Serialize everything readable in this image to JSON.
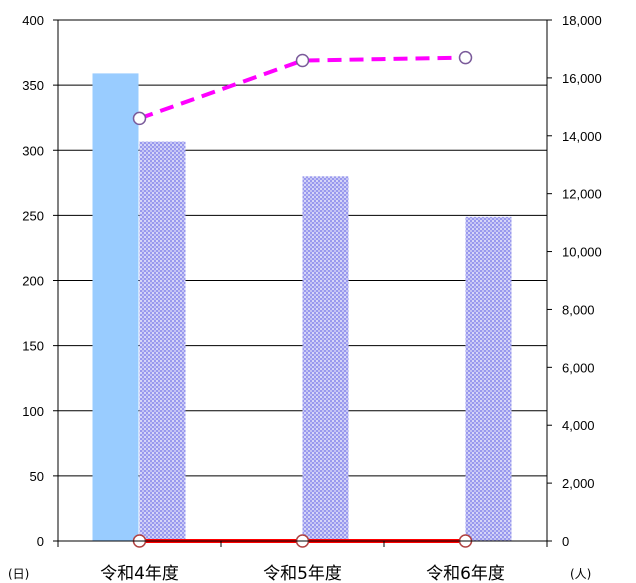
{
  "chart_data": {
    "type": "bar",
    "categories": [
      "令和4年度",
      "令和5年度",
      "令和6年度"
    ],
    "left_axis": {
      "unit": "(日)",
      "ylim": [
        0,
        400
      ],
      "ticks": [
        "0",
        "50",
        "100",
        "150",
        "200",
        "250",
        "300",
        "350",
        "400"
      ]
    },
    "right_axis": {
      "unit": "(人)",
      "ylim": [
        0,
        18000
      ],
      "ticks": [
        "0",
        "2,000",
        "4,000",
        "6,000",
        "8,000",
        "10,000",
        "12,000",
        "14,000",
        "16,000",
        "18,000"
      ]
    },
    "series": [
      {
        "kind": "bar",
        "axis": "left",
        "style": "solid",
        "color": "#99ccff",
        "values": [
          359,
          null,
          null
        ]
      },
      {
        "kind": "bar",
        "axis": "right",
        "style": "dotted",
        "color": "#9999ee",
        "values": [
          13800,
          12600,
          11200
        ]
      },
      {
        "kind": "line",
        "axis": "right",
        "style": "dashed",
        "color": "#ff00ff",
        "values": [
          14600,
          16600,
          16700
        ]
      },
      {
        "kind": "line",
        "axis": "right",
        "style": "solid",
        "color": "#ff0000",
        "values": [
          0,
          0,
          0
        ]
      }
    ],
    "grid": true,
    "legend": "none"
  }
}
